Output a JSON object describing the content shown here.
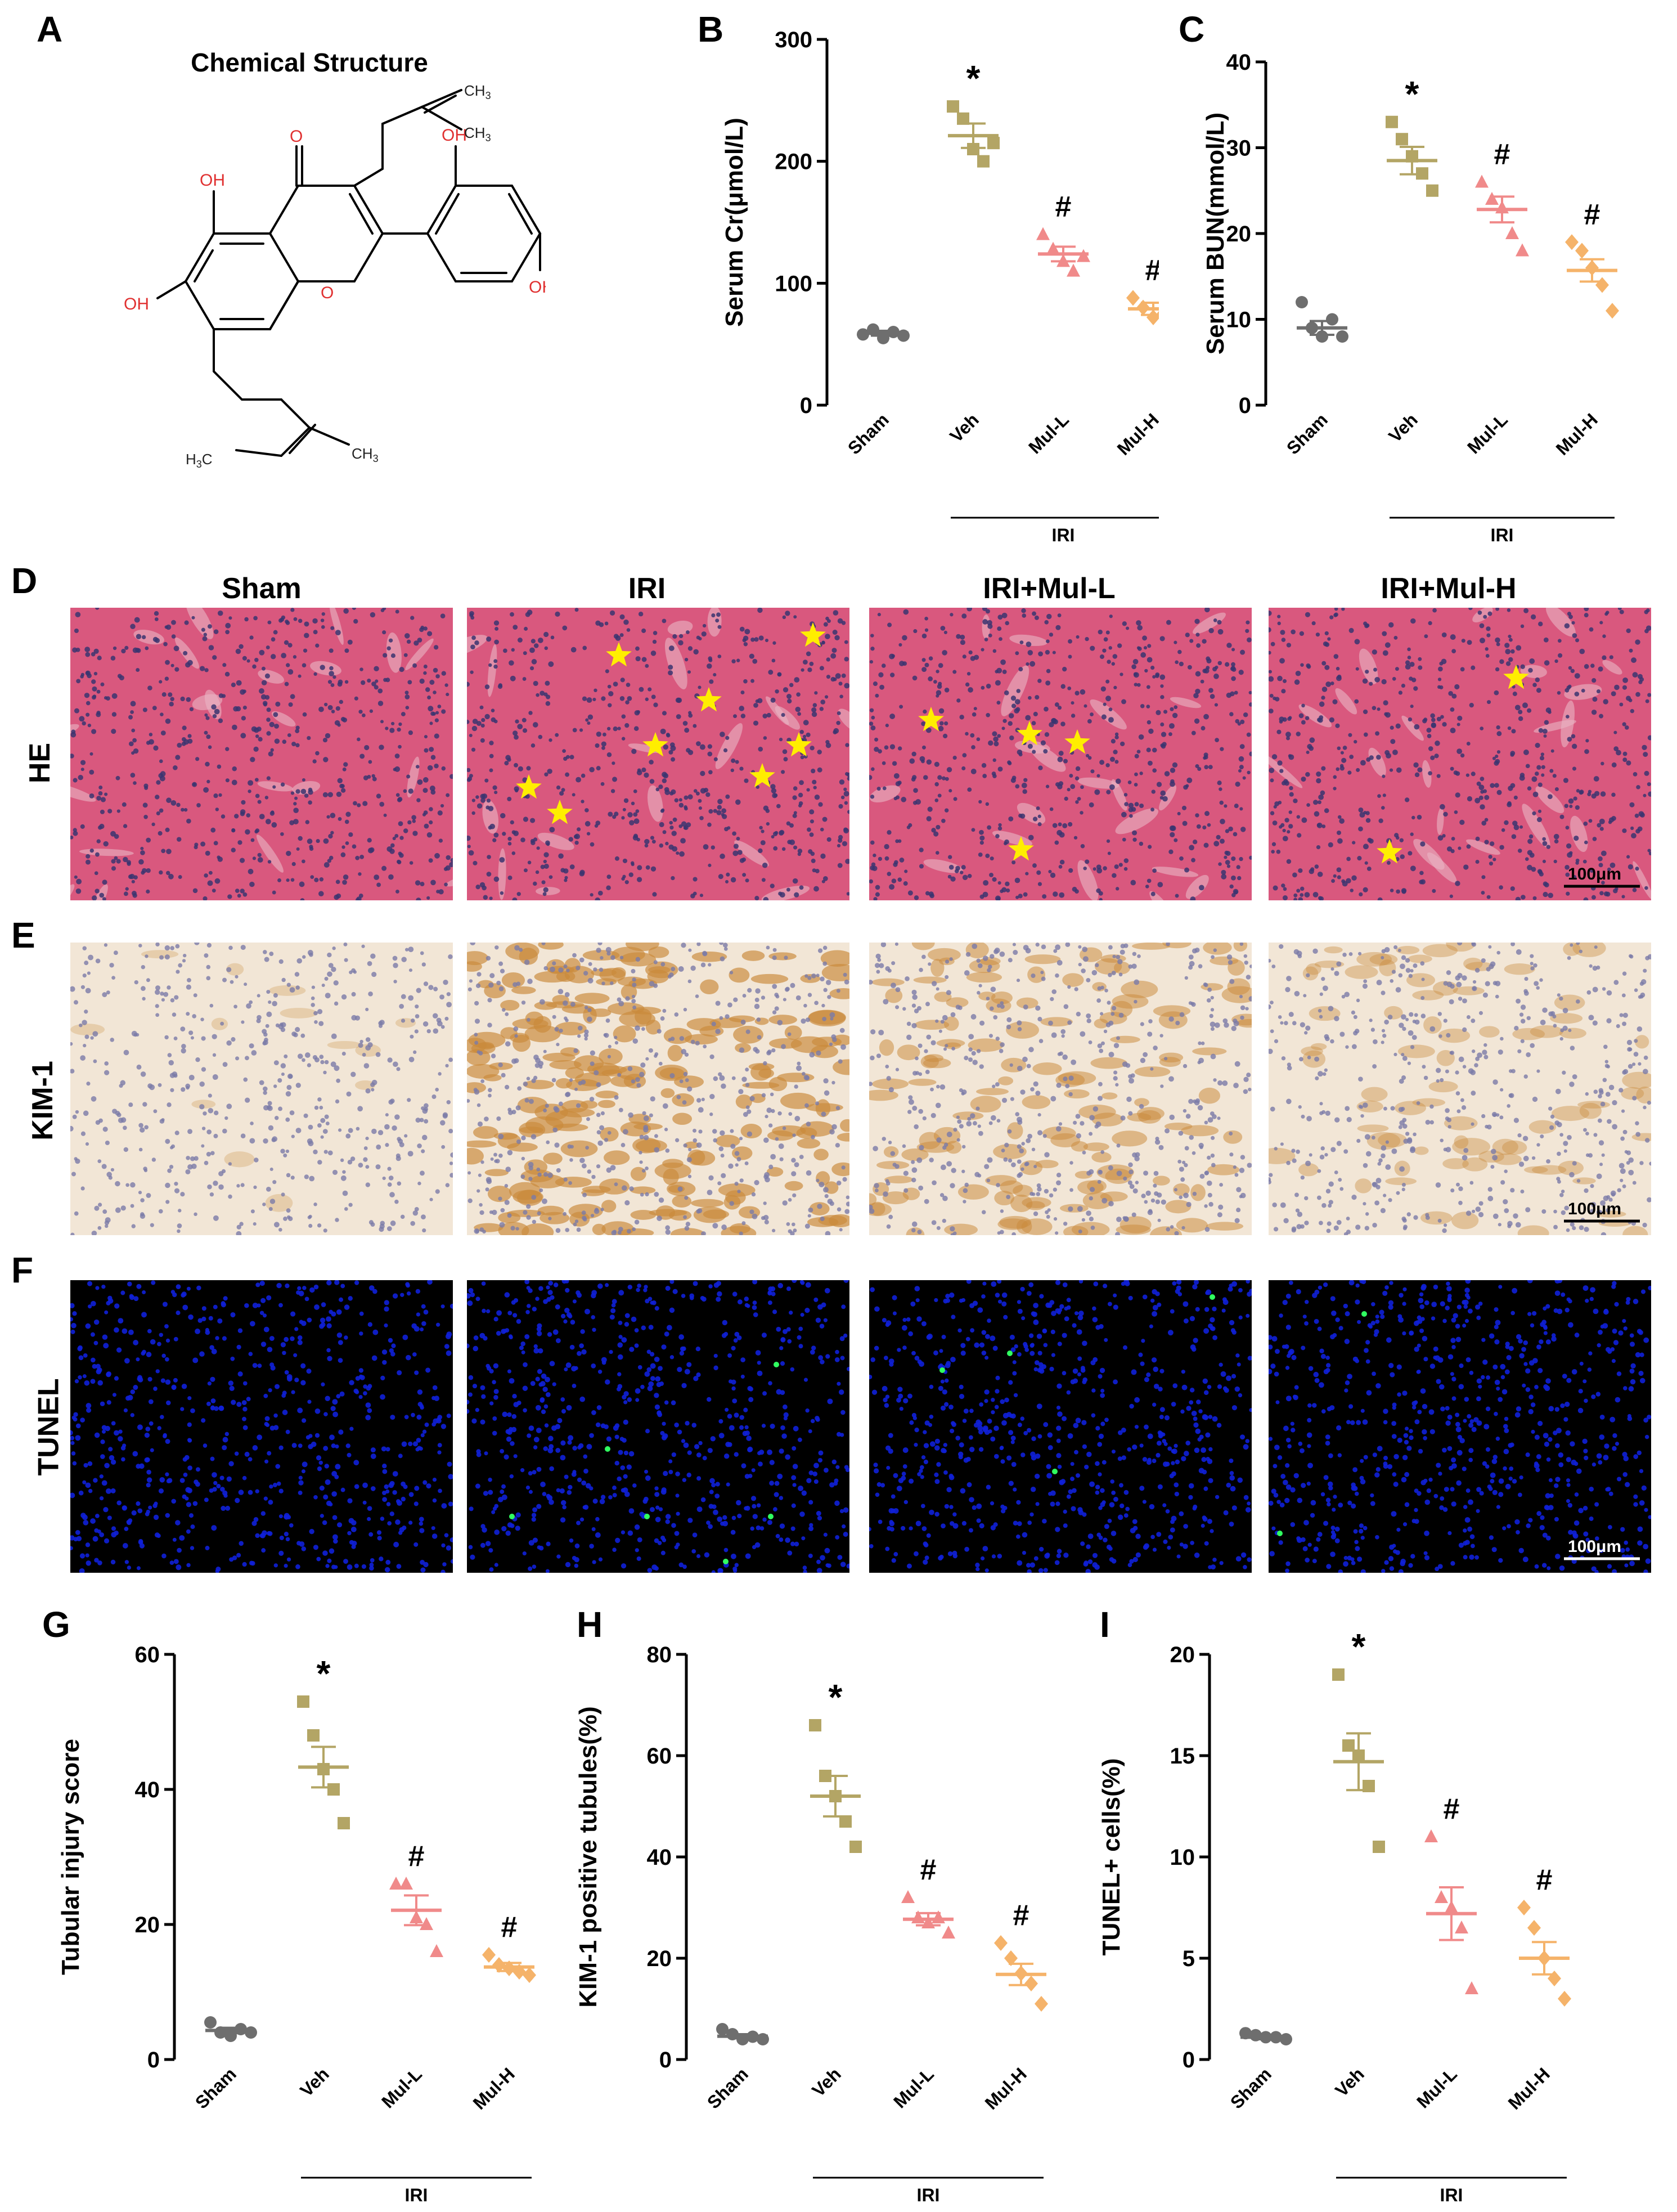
{
  "panel_letters": {
    "A": "A",
    "B": "B",
    "C": "C",
    "D": "D",
    "E": "E",
    "F": "F",
    "G": "G",
    "H": "H",
    "I": "I"
  },
  "chemical_structure": {
    "title": "Chemical Structure",
    "labels": {
      "oh1": "OH",
      "oh2": "OH",
      "oh3": "OH",
      "oh4": "OH",
      "o_ketone": "O",
      "o_ring": "O",
      "ch3_1": "CH",
      "ch3_2": "CH",
      "ch3_3": "CH",
      "ch3_4": "CH",
      "h3c_1": "H",
      "h3c_2": "C",
      "sub3": "3"
    }
  },
  "micrographs": {
    "columns": [
      "Sham",
      "IRI",
      "IRI+Mul-L",
      "IRI+Mul-H"
    ],
    "rows": [
      "HE",
      "KIM-1",
      "TUNEL"
    ],
    "scale_bar": "100μm",
    "colors": {
      "he_bg": "#d9587e",
      "he_nuclei": "#3a3570",
      "kim_bg": "#f2e6d6",
      "kim_stain": "#c98a3c",
      "kim_nuclei": "#7a7aa8",
      "tunel_bg": "#000000",
      "tunel_nuclei": "#1020d8",
      "tunel_positive": "#30ff60",
      "star": "#ffee00"
    }
  },
  "chart_data": [
    {
      "id": "B",
      "type": "scatter",
      "categories": [
        "Sham",
        "Veh",
        "Mul-L",
        "Mul-H"
      ],
      "group_label": "IRI",
      "ylabel": "Serum Cr(μmol/L)",
      "ylim": [
        0,
        300
      ],
      "yticks": [
        0,
        100,
        200,
        300
      ],
      "colors": [
        "#6e6e6e",
        "#b3a565",
        "#f08a8a",
        "#f5b36a"
      ],
      "markers": [
        "circle",
        "square",
        "triangle",
        "diamond"
      ],
      "points": [
        [
          58,
          62,
          55,
          60,
          57
        ],
        [
          245,
          235,
          210,
          200,
          215
        ],
        [
          140,
          128,
          118,
          110,
          122
        ],
        [
          88,
          80,
          72,
          75,
          80
        ]
      ],
      "mean": [
        59,
        221,
        124,
        79
      ],
      "sem": [
        2,
        10,
        6,
        5
      ],
      "annotations": [
        "",
        "*",
        "#",
        "#"
      ]
    },
    {
      "id": "C",
      "type": "scatter",
      "categories": [
        "Sham",
        "Veh",
        "Mul-L",
        "Mul-H"
      ],
      "group_label": "IRI",
      "ylabel": "Serum BUN(mmol/L)",
      "ylim": [
        0,
        40
      ],
      "yticks": [
        0,
        10,
        20,
        30,
        40
      ],
      "colors": [
        "#6e6e6e",
        "#b3a565",
        "#f08a8a",
        "#f5b36a"
      ],
      "markers": [
        "circle",
        "square",
        "triangle",
        "diamond"
      ],
      "points": [
        [
          12,
          9,
          8,
          10,
          8
        ],
        [
          33,
          31,
          29,
          27,
          25
        ],
        [
          26,
          24,
          23,
          20,
          18
        ],
        [
          19,
          18,
          16,
          14,
          11
        ]
      ],
      "mean": [
        9,
        28.5,
        22.8,
        15.7
      ],
      "sem": [
        0.8,
        1.6,
        1.5,
        1.3
      ],
      "annotations": [
        "",
        "*",
        "#",
        "#"
      ]
    },
    {
      "id": "G",
      "type": "scatter",
      "categories": [
        "Sham",
        "Veh",
        "Mul-L",
        "Mul-H"
      ],
      "group_label": "IRI",
      "ylabel": "Tubular injury score",
      "ylim": [
        0,
        60
      ],
      "yticks": [
        0,
        20,
        40,
        60
      ],
      "colors": [
        "#6e6e6e",
        "#b3a565",
        "#f08a8a",
        "#f5b36a"
      ],
      "markers": [
        "circle",
        "square",
        "triangle",
        "diamond"
      ],
      "points": [
        [
          5.5,
          4,
          3.5,
          4.5,
          4
        ],
        [
          53,
          48,
          43,
          40,
          35
        ],
        [
          26,
          26,
          21,
          20,
          16
        ],
        [
          15.5,
          14,
          13.5,
          13,
          12.5
        ]
      ],
      "mean": [
        4.3,
        43.3,
        22.1,
        13.7
      ],
      "sem": [
        0.4,
        3,
        2.2,
        0.6
      ],
      "annotations": [
        "",
        "*",
        "#",
        "#"
      ]
    },
    {
      "id": "H",
      "type": "scatter",
      "categories": [
        "Sham",
        "Veh",
        "Mul-L",
        "Mul-H"
      ],
      "group_label": "IRI",
      "ylabel": "KIM-1 positive tubules(%)",
      "ylim": [
        0,
        80
      ],
      "yticks": [
        0,
        20,
        40,
        60,
        80
      ],
      "colors": [
        "#6e6e6e",
        "#b3a565",
        "#f08a8a",
        "#f5b36a"
      ],
      "markers": [
        "circle",
        "square",
        "triangle",
        "diamond"
      ],
      "points": [
        [
          6,
          5,
          4,
          4.5,
          4
        ],
        [
          66,
          56,
          52,
          47,
          42
        ],
        [
          32,
          28,
          27,
          28,
          25
        ],
        [
          23,
          20,
          17,
          15,
          11
        ]
      ],
      "mean": [
        4.6,
        52,
        27.7,
        16.8
      ],
      "sem": [
        0.4,
        4,
        1.2,
        2.1
      ],
      "annotations": [
        "",
        "*",
        "#",
        "#"
      ]
    },
    {
      "id": "I",
      "type": "scatter",
      "categories": [
        "Sham",
        "Veh",
        "Mul-L",
        "Mul-H"
      ],
      "group_label": "IRI",
      "ylabel": "TUNEL+ cells(%)",
      "ylim": [
        0,
        20
      ],
      "yticks": [
        0,
        5,
        10,
        15,
        20
      ],
      "colors": [
        "#6e6e6e",
        "#b3a565",
        "#f08a8a",
        "#f5b36a"
      ],
      "markers": [
        "circle",
        "square",
        "triangle",
        "diamond"
      ],
      "points": [
        [
          1.3,
          1.2,
          1.1,
          1.1,
          1.0
        ],
        [
          19,
          15.5,
          15,
          13.5,
          10.5
        ],
        [
          11,
          8,
          7.5,
          6.5,
          3.5
        ],
        [
          7.5,
          6.5,
          5,
          4,
          3
        ]
      ],
      "mean": [
        1.1,
        14.7,
        7.2,
        5.0
      ],
      "sem": [
        0.1,
        1.4,
        1.3,
        0.8
      ],
      "annotations": [
        "",
        "*",
        "#",
        "#"
      ]
    }
  ]
}
